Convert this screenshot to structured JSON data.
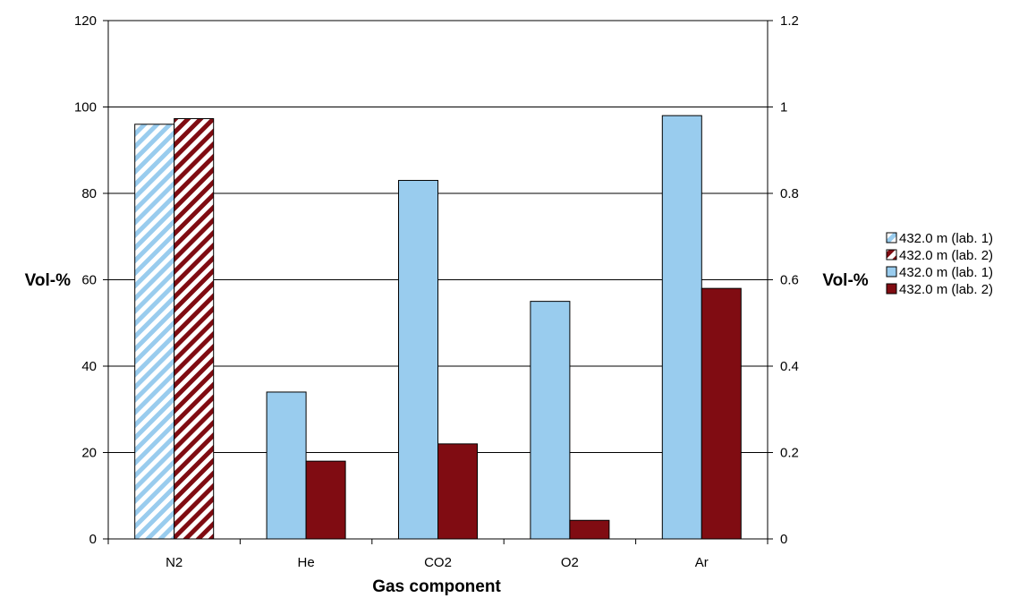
{
  "chart_data": {
    "type": "bar",
    "categories": [
      "N2",
      "He",
      "CO2",
      "O2",
      "Ar"
    ],
    "xlabel": "Gas component",
    "ylabel_left": "Vol-%",
    "ylabel_right": "Vol-%",
    "ylim_left": [
      0,
      120
    ],
    "ylim_right": [
      0,
      1.2
    ],
    "yticks_left": [
      "0",
      "20",
      "40",
      "60",
      "80",
      "100",
      "120"
    ],
    "yticks_right": [
      "0",
      "0.2",
      "0.4",
      "0.6",
      "0.8",
      "1",
      "1.2"
    ],
    "grid": true,
    "legend_position": "right",
    "series": [
      {
        "name": "432.0 m (lab. 1)",
        "axis": "left",
        "pattern": "hatched",
        "color": "#99ccee",
        "values": [
          96,
          null,
          null,
          null,
          null
        ]
      },
      {
        "name": "432.0 m (lab. 2)",
        "axis": "left",
        "pattern": "hatched",
        "color": "#800c12",
        "values": [
          97.3,
          null,
          null,
          null,
          null
        ]
      },
      {
        "name": "432.0 m (lab. 1)",
        "axis": "right",
        "pattern": "solid",
        "color": "#99ccee",
        "values": [
          null,
          0.34,
          0.83,
          0.55,
          0.98
        ]
      },
      {
        "name": "432.0 m (lab. 2)",
        "axis": "right",
        "pattern": "solid",
        "color": "#800c12",
        "values": [
          null,
          0.18,
          0.22,
          0.043,
          0.58
        ]
      }
    ]
  }
}
